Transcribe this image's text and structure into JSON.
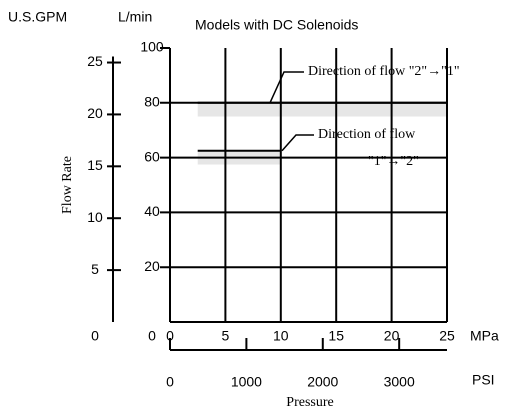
{
  "chart_data": {
    "type": "line",
    "title": "Models with DC Solenoids",
    "y_label": "Flow Rate",
    "x_label": "Pressure",
    "x_unit": "MPa",
    "x2_unit": "PSI",
    "y_unit": "L/min",
    "y2_unit": "U.S.GPM",
    "xlim": [
      0,
      25
    ],
    "xticks": [
      0,
      5,
      10,
      15,
      20,
      25
    ],
    "x2lim": [
      0,
      3626
    ],
    "x2ticks": [
      0,
      1000,
      2000,
      3000
    ],
    "ylim": [
      0,
      100
    ],
    "yticks": [
      0,
      20,
      40,
      60,
      80,
      100
    ],
    "y2lim": [
      0,
      26.4
    ],
    "y2ticks": [
      0,
      5,
      10,
      15,
      20,
      25
    ],
    "grid": true,
    "series": [
      {
        "name": [
          "Direction of flow \"2\"→\"1\""
        ],
        "color": "#000000",
        "band_color": "#e6e6e6",
        "x": [
          2.5,
          25
        ],
        "values": [
          80,
          80
        ],
        "lower_values": [
          75,
          75
        ]
      },
      {
        "name": [
          "Direction of flow",
          "\"1\"→\"2\""
        ],
        "color": "#000000",
        "band_color": "#e6e6e6",
        "x": [
          2.5,
          10
        ],
        "values": [
          62.5,
          62.5
        ],
        "lower_values": [
          57.5,
          57.5
        ]
      }
    ]
  }
}
